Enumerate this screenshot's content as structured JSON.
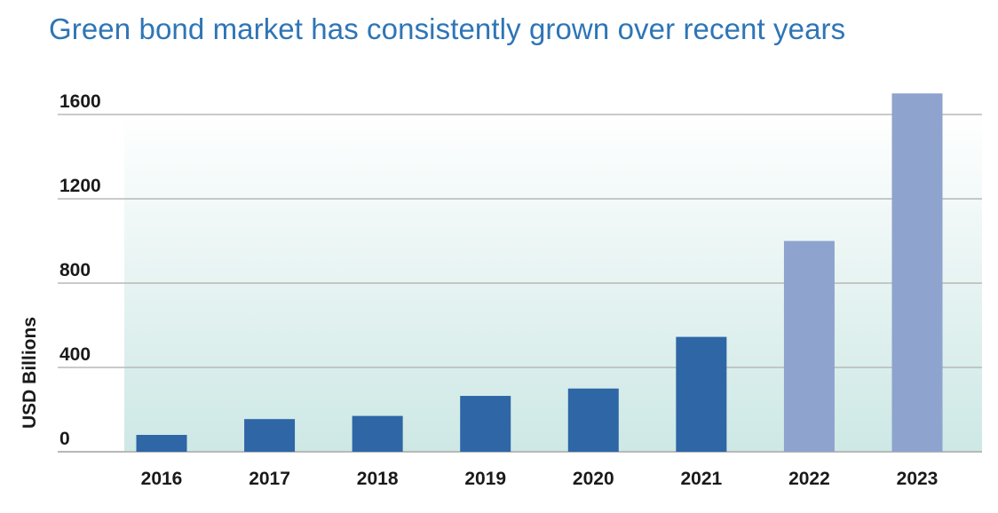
{
  "title": "Green bond market has consistently grown over recent years",
  "chart_data": {
    "type": "bar",
    "categories": [
      "2016",
      "2017",
      "2018",
      "2019",
      "2020",
      "2021",
      "2022",
      "2023"
    ],
    "values": [
      80,
      155,
      170,
      265,
      300,
      545,
      1000,
      1700
    ],
    "xlabel": "",
    "ylabel": "USD Billions",
    "ylim": [
      0,
      1600
    ],
    "yticks": [
      0,
      400,
      800,
      1200,
      1600
    ],
    "grid": true,
    "legend": "none",
    "colors": {
      "actual": "#2e66a6",
      "projected": "#8ea3cd",
      "background_top": "#ffffff",
      "background_bottom": "#cde8e5",
      "gridline": "#b8b8b8"
    },
    "projected_categories": [
      "2022",
      "2023"
    ]
  }
}
